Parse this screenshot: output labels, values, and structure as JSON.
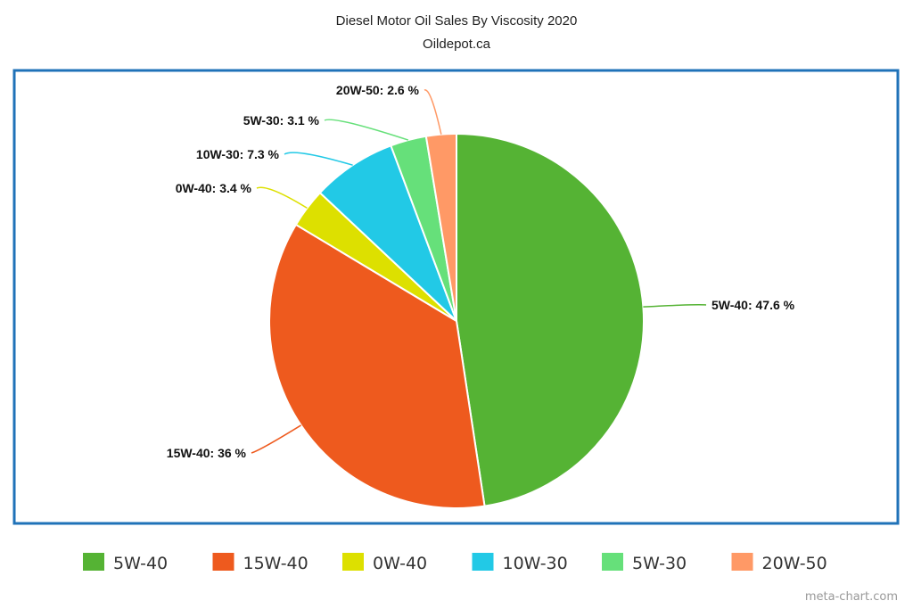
{
  "chart_data": {
    "type": "pie",
    "title": "Diesel Motor Oil Sales By Viscosity 2020",
    "subtitle": "Oildepot.ca",
    "unit": "%",
    "legend_position": "bottom",
    "credit": "meta-chart.com",
    "slices": [
      {
        "name": "5W-40",
        "value": 47.6,
        "label": "5W-40: 47.6 %",
        "color": "#55b334"
      },
      {
        "name": "15W-40",
        "value": 36,
        "label": "15W-40: 36 %",
        "color": "#ee5a1e"
      },
      {
        "name": "0W-40",
        "value": 3.4,
        "label": "0W-40: 3.4 %",
        "color": "#dde000"
      },
      {
        "name": "10W-30",
        "value": 7.3,
        "label": "10W-30: 7.3 %",
        "color": "#22c9e6"
      },
      {
        "name": "5W-30",
        "value": 3.1,
        "label": "5W-30: 3.1 %",
        "color": "#66e07a"
      },
      {
        "name": "20W-50",
        "value": 2.6,
        "label": "20W-50: 2.6 %",
        "color": "#ff9966"
      }
    ]
  }
}
